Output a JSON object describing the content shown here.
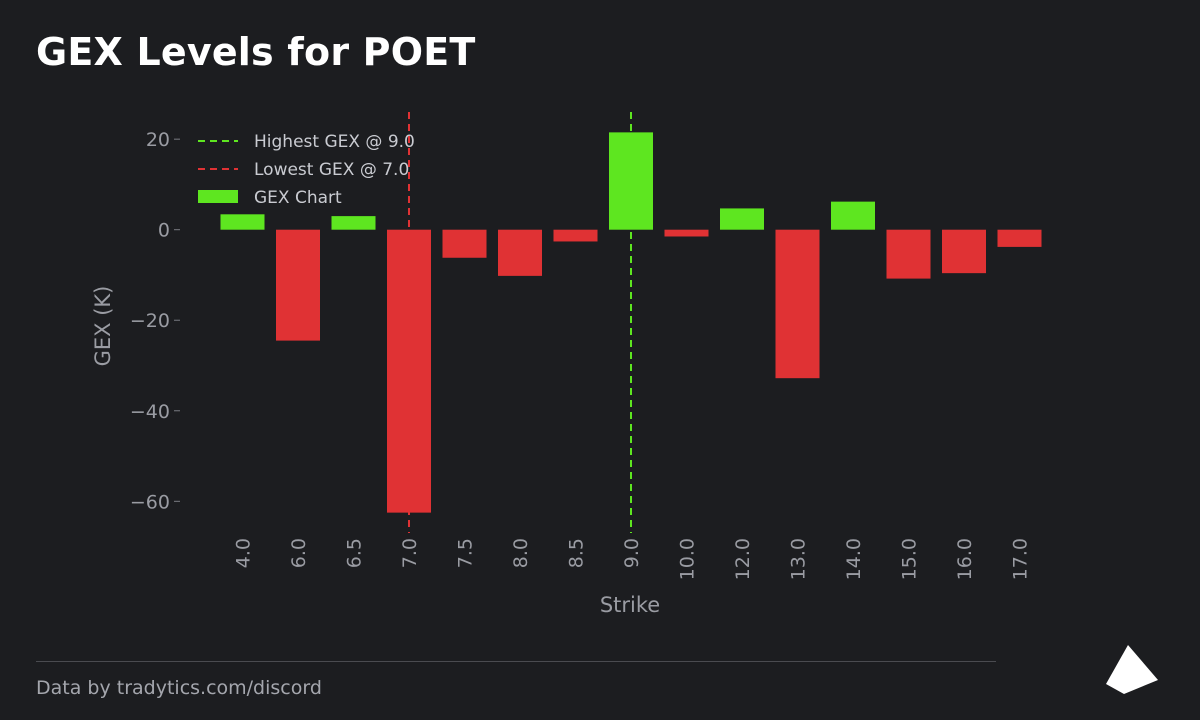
{
  "title": "GEX Levels for POET",
  "footer": {
    "text": "Data by tradytics.com/discord"
  },
  "colors": {
    "positive": "#5ee620",
    "negative": "#e03234",
    "background": "#1c1d20",
    "text": "#9a9ca3"
  },
  "chart_data": {
    "type": "bar",
    "categories": [
      "4.0",
      "6.0",
      "6.5",
      "7.0",
      "7.5",
      "8.0",
      "8.5",
      "9.0",
      "10.0",
      "12.0",
      "13.0",
      "14.0",
      "15.0",
      "16.0",
      "17.0"
    ],
    "values": [
      3.4,
      -24.5,
      3.0,
      -62.5,
      -6.2,
      -10.2,
      -2.6,
      21.5,
      -1.5,
      4.7,
      -32.8,
      6.2,
      -10.8,
      -9.6,
      -3.8
    ],
    "ylim": [
      -67,
      26
    ],
    "yticks": [
      20,
      0,
      -20,
      -40,
      -60
    ],
    "ytick_labels": [
      "20",
      "0",
      "−20",
      "−40",
      "−60"
    ],
    "xlabel": "Strike",
    "ylabel": "GEX (K)",
    "highest": {
      "strike": "9.0",
      "label": "Highest GEX @ 9.0"
    },
    "lowest": {
      "strike": "7.0",
      "label": "Lowest GEX @ 7.0"
    },
    "legend": {
      "position": "top-left",
      "bars_label": "GEX Chart"
    },
    "grid": false
  }
}
